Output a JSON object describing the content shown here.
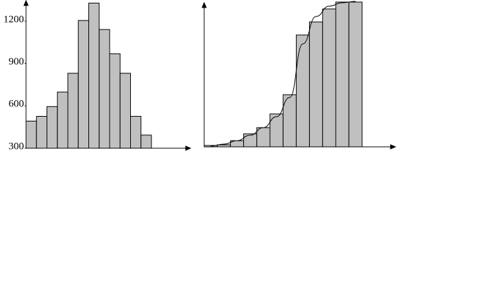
{
  "chart_data": [
    {
      "type": "bar",
      "categories": [
        null,
        null,
        null,
        null,
        null,
        null,
        null,
        null,
        null,
        null,
        null,
        null
      ],
      "values": [
        492,
        526,
        595,
        698,
        831,
        1205,
        1328,
        1141,
        969,
        831,
        526,
        393
      ],
      "color": "#c0c0c0",
      "ylim": [
        300,
        1350
      ],
      "yticks": [
        300,
        600,
        900,
        1200
      ]
    },
    {
      "type": "bar",
      "categories": [
        null,
        null,
        null,
        null,
        null,
        null,
        null,
        null,
        null,
        null,
        null,
        null
      ],
      "values": [
        2,
        3,
        9,
        19,
        28,
        48,
        76,
        163,
        182,
        201,
        211,
        211
      ],
      "curve": [
        1,
        4,
        9,
        17,
        28,
        44,
        72,
        150,
        190,
        205,
        210,
        212
      ],
      "color": "#c0c0c0",
      "ylim": [
        0,
        212
      ]
    }
  ]
}
